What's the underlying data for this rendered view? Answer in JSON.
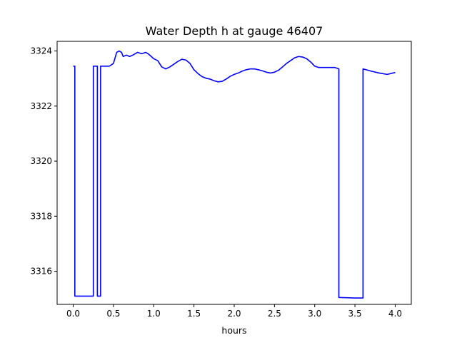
{
  "chart_data": {
    "type": "line",
    "title": "Water Depth h at gauge 46407",
    "xlabel": "hours",
    "ylabel": "",
    "xlim": [
      -0.2,
      4.2
    ],
    "ylim": [
      3314.8,
      3324.35
    ],
    "xticks": [
      0.0,
      0.5,
      1.0,
      1.5,
      2.0,
      2.5,
      3.0,
      3.5,
      4.0
    ],
    "xtick_labels": [
      "0.0",
      "0.5",
      "1.0",
      "1.5",
      "2.0",
      "2.5",
      "3.0",
      "3.5",
      "4.0"
    ],
    "yticks": [
      3316,
      3318,
      3320,
      3322,
      3324
    ],
    "ytick_labels": [
      "3316",
      "3318",
      "3320",
      "3322",
      "3324"
    ],
    "grid": false,
    "series": [
      {
        "color": "#0000ff",
        "x": [
          0.0,
          0.02,
          0.02,
          0.25,
          0.25,
          0.3,
          0.3,
          0.34,
          0.34,
          0.45,
          0.5,
          0.54,
          0.57,
          0.6,
          0.62,
          0.66,
          0.7,
          0.74,
          0.8,
          0.85,
          0.9,
          0.93,
          0.97,
          1.0,
          1.05,
          1.1,
          1.15,
          1.2,
          1.25,
          1.3,
          1.35,
          1.4,
          1.45,
          1.5,
          1.55,
          1.6,
          1.65,
          1.7,
          1.75,
          1.8,
          1.85,
          1.9,
          1.95,
          2.0,
          2.05,
          2.1,
          2.15,
          2.2,
          2.25,
          2.3,
          2.35,
          2.4,
          2.45,
          2.5,
          2.55,
          2.6,
          2.65,
          2.7,
          2.75,
          2.8,
          2.85,
          2.9,
          2.95,
          3.0,
          3.05,
          3.1,
          3.15,
          3.2,
          3.25,
          3.3,
          3.3,
          3.4,
          3.5,
          3.6,
          3.6,
          3.7,
          3.8,
          3.9,
          4.0
        ],
        "y": [
          3323.45,
          3323.45,
          3315.1,
          3315.1,
          3323.45,
          3323.45,
          3315.1,
          3315.1,
          3323.45,
          3323.45,
          3323.55,
          3323.95,
          3324.0,
          3323.95,
          3323.8,
          3323.85,
          3323.8,
          3323.85,
          3323.95,
          3323.9,
          3323.95,
          3323.9,
          3323.8,
          3323.72,
          3323.65,
          3323.42,
          3323.35,
          3323.42,
          3323.52,
          3323.62,
          3323.7,
          3323.67,
          3323.55,
          3323.32,
          3323.18,
          3323.07,
          3323.01,
          3322.98,
          3322.92,
          3322.88,
          3322.9,
          3322.98,
          3323.08,
          3323.15,
          3323.2,
          3323.27,
          3323.32,
          3323.35,
          3323.35,
          3323.32,
          3323.28,
          3323.23,
          3323.2,
          3323.23,
          3323.3,
          3323.42,
          3323.55,
          3323.65,
          3323.75,
          3323.8,
          3323.78,
          3323.72,
          3323.6,
          3323.45,
          3323.4,
          3323.4,
          3323.4,
          3323.4,
          3323.4,
          3323.35,
          3315.05,
          3315.04,
          3315.03,
          3315.03,
          3323.35,
          3323.27,
          3323.2,
          3323.15,
          3323.22
        ]
      }
    ]
  }
}
